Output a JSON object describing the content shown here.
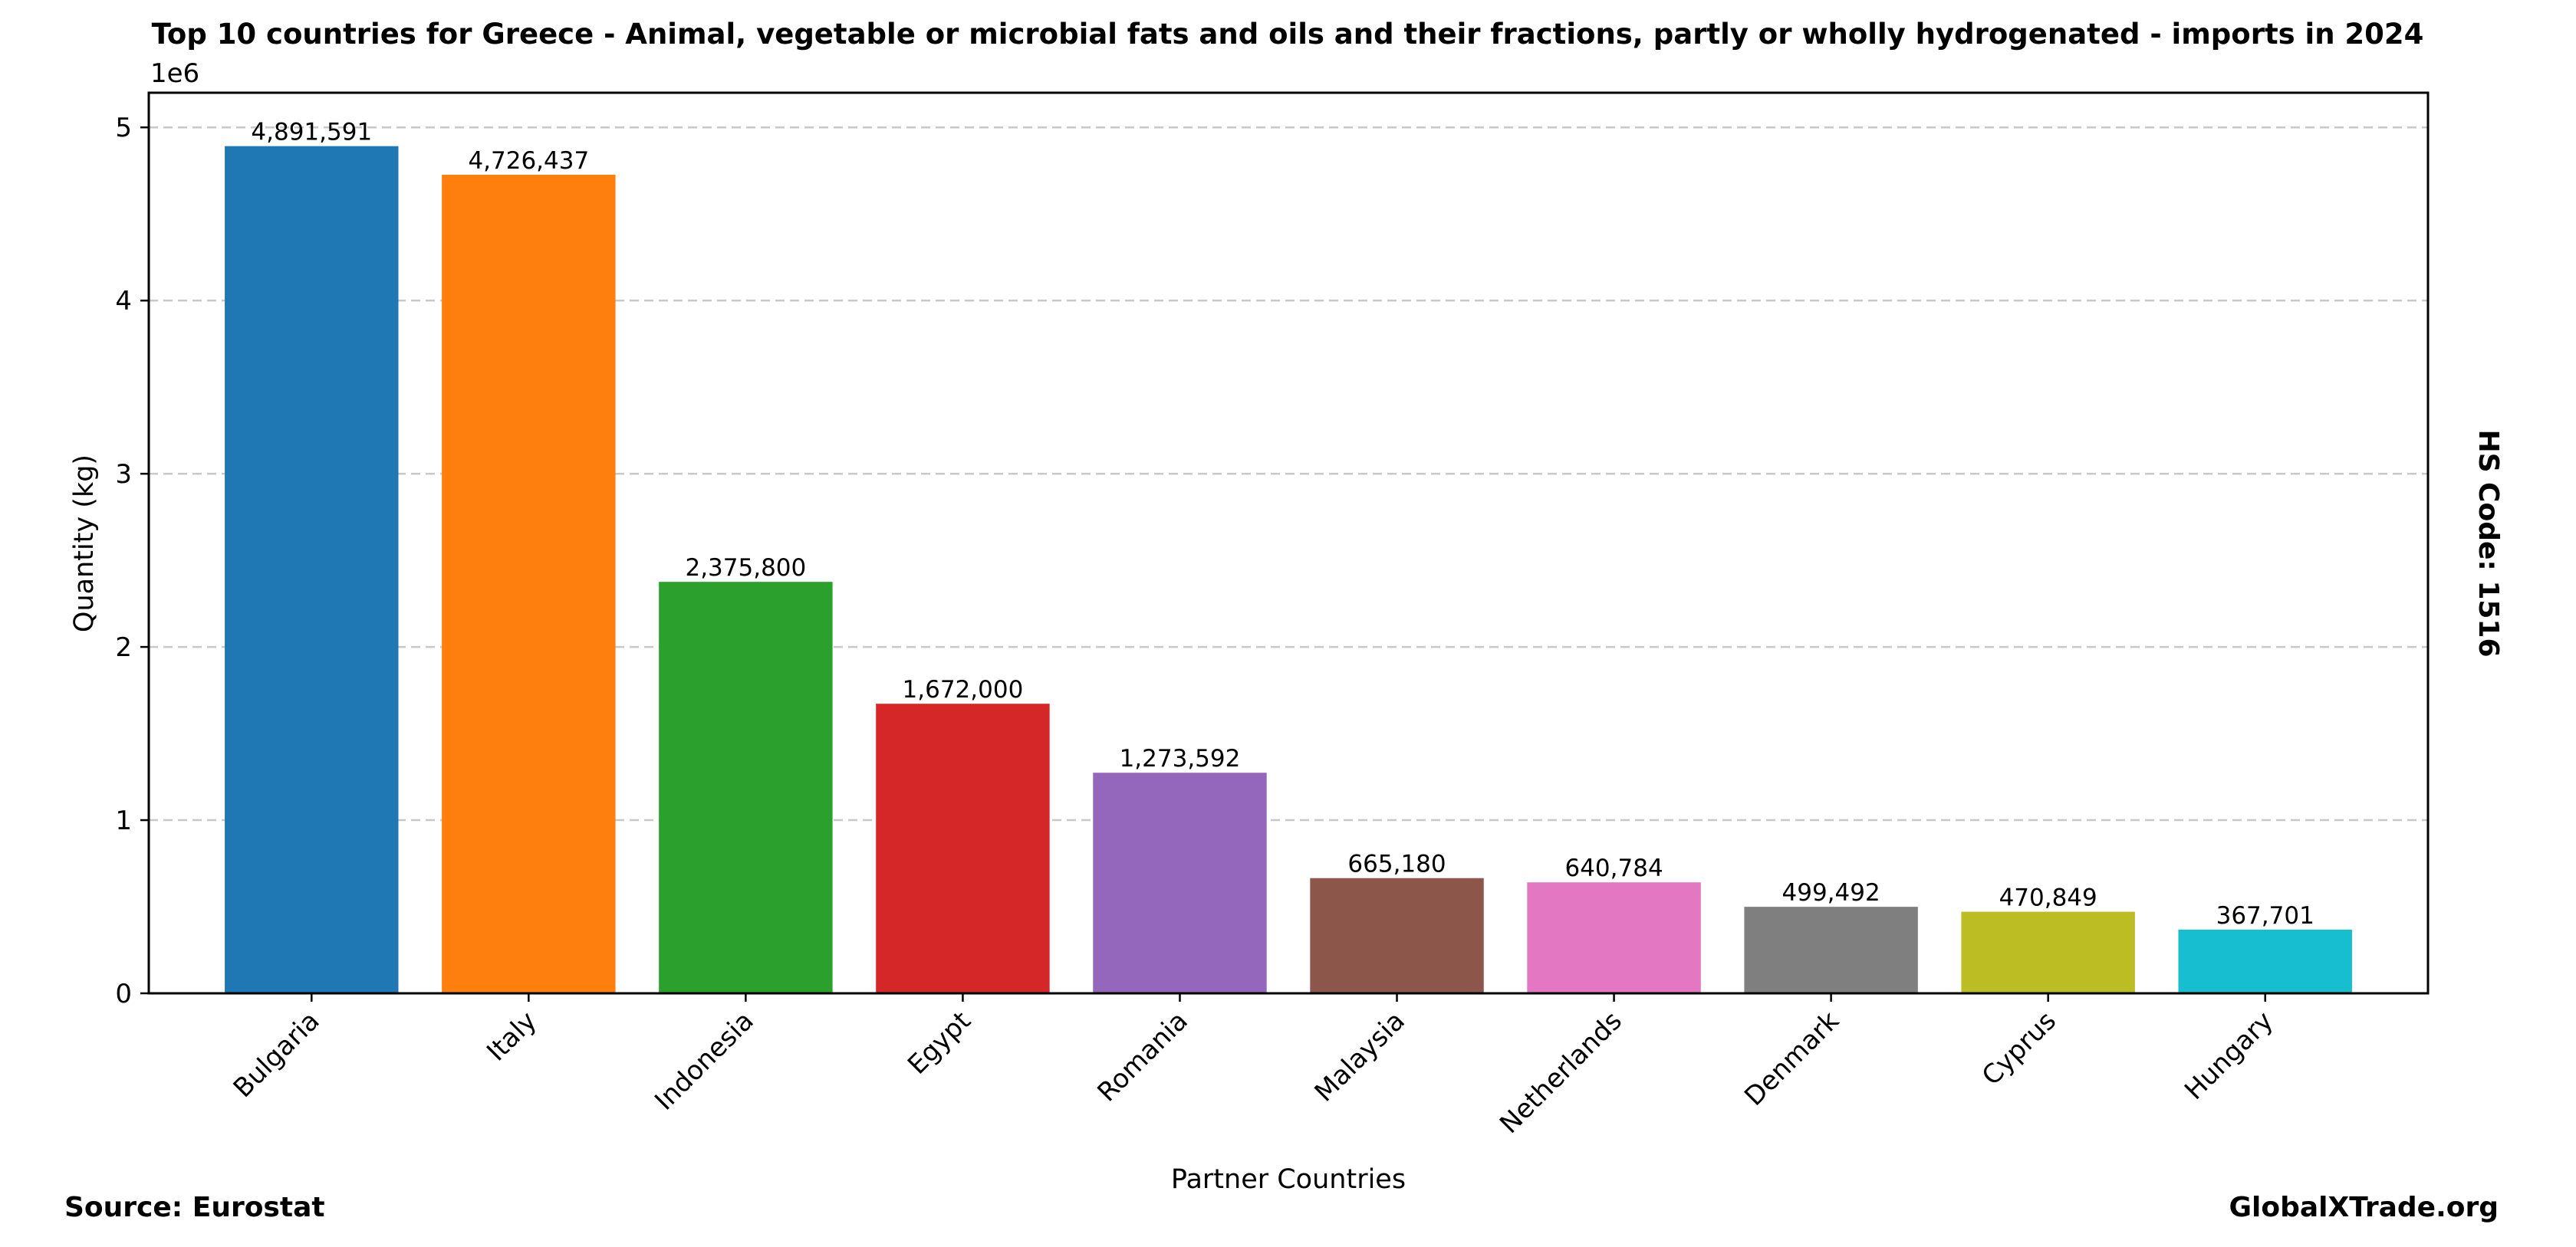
{
  "chart_data": {
    "type": "bar",
    "title": "Top 10 countries for Greece - Animal, vegetable or microbial fats and oils and their fractions, partly or wholly hydrogenated - imports in 2024",
    "xlabel": "Partner Countries",
    "ylabel": "Quantity (kg)",
    "y_multiplier_label": "1e6",
    "ylim": [
      0,
      5200000
    ],
    "y_ticks": [
      0,
      1000000,
      2000000,
      3000000,
      4000000,
      5000000
    ],
    "y_tick_labels": [
      "0",
      "1",
      "2",
      "3",
      "4",
      "5"
    ],
    "grid": "horizontal dashed",
    "categories": [
      "Bulgaria",
      "Italy",
      "Indonesia",
      "Egypt",
      "Romania",
      "Malaysia",
      "Netherlands",
      "Denmark",
      "Cyprus",
      "Hungary"
    ],
    "values": [
      4891591,
      4726437,
      2375800,
      1672000,
      1273592,
      665180,
      640784,
      499492,
      470849,
      367701
    ],
    "value_labels": [
      "4,891,591",
      "4,726,437",
      "2,375,800",
      "1,672,000",
      "1,273,592",
      "665,180",
      "640,784",
      "499,492",
      "470,849",
      "367,701"
    ],
    "colors": [
      "#1f77b4",
      "#ff7f0e",
      "#2ca02c",
      "#d62728",
      "#9467bd",
      "#8c564b",
      "#e377c2",
      "#7f7f7f",
      "#bcbd22",
      "#17becf"
    ]
  },
  "annotations": {
    "side_note": "HS Code: 1516",
    "source": "Source: Eurostat",
    "brand": "GlobalXTrade.org"
  }
}
